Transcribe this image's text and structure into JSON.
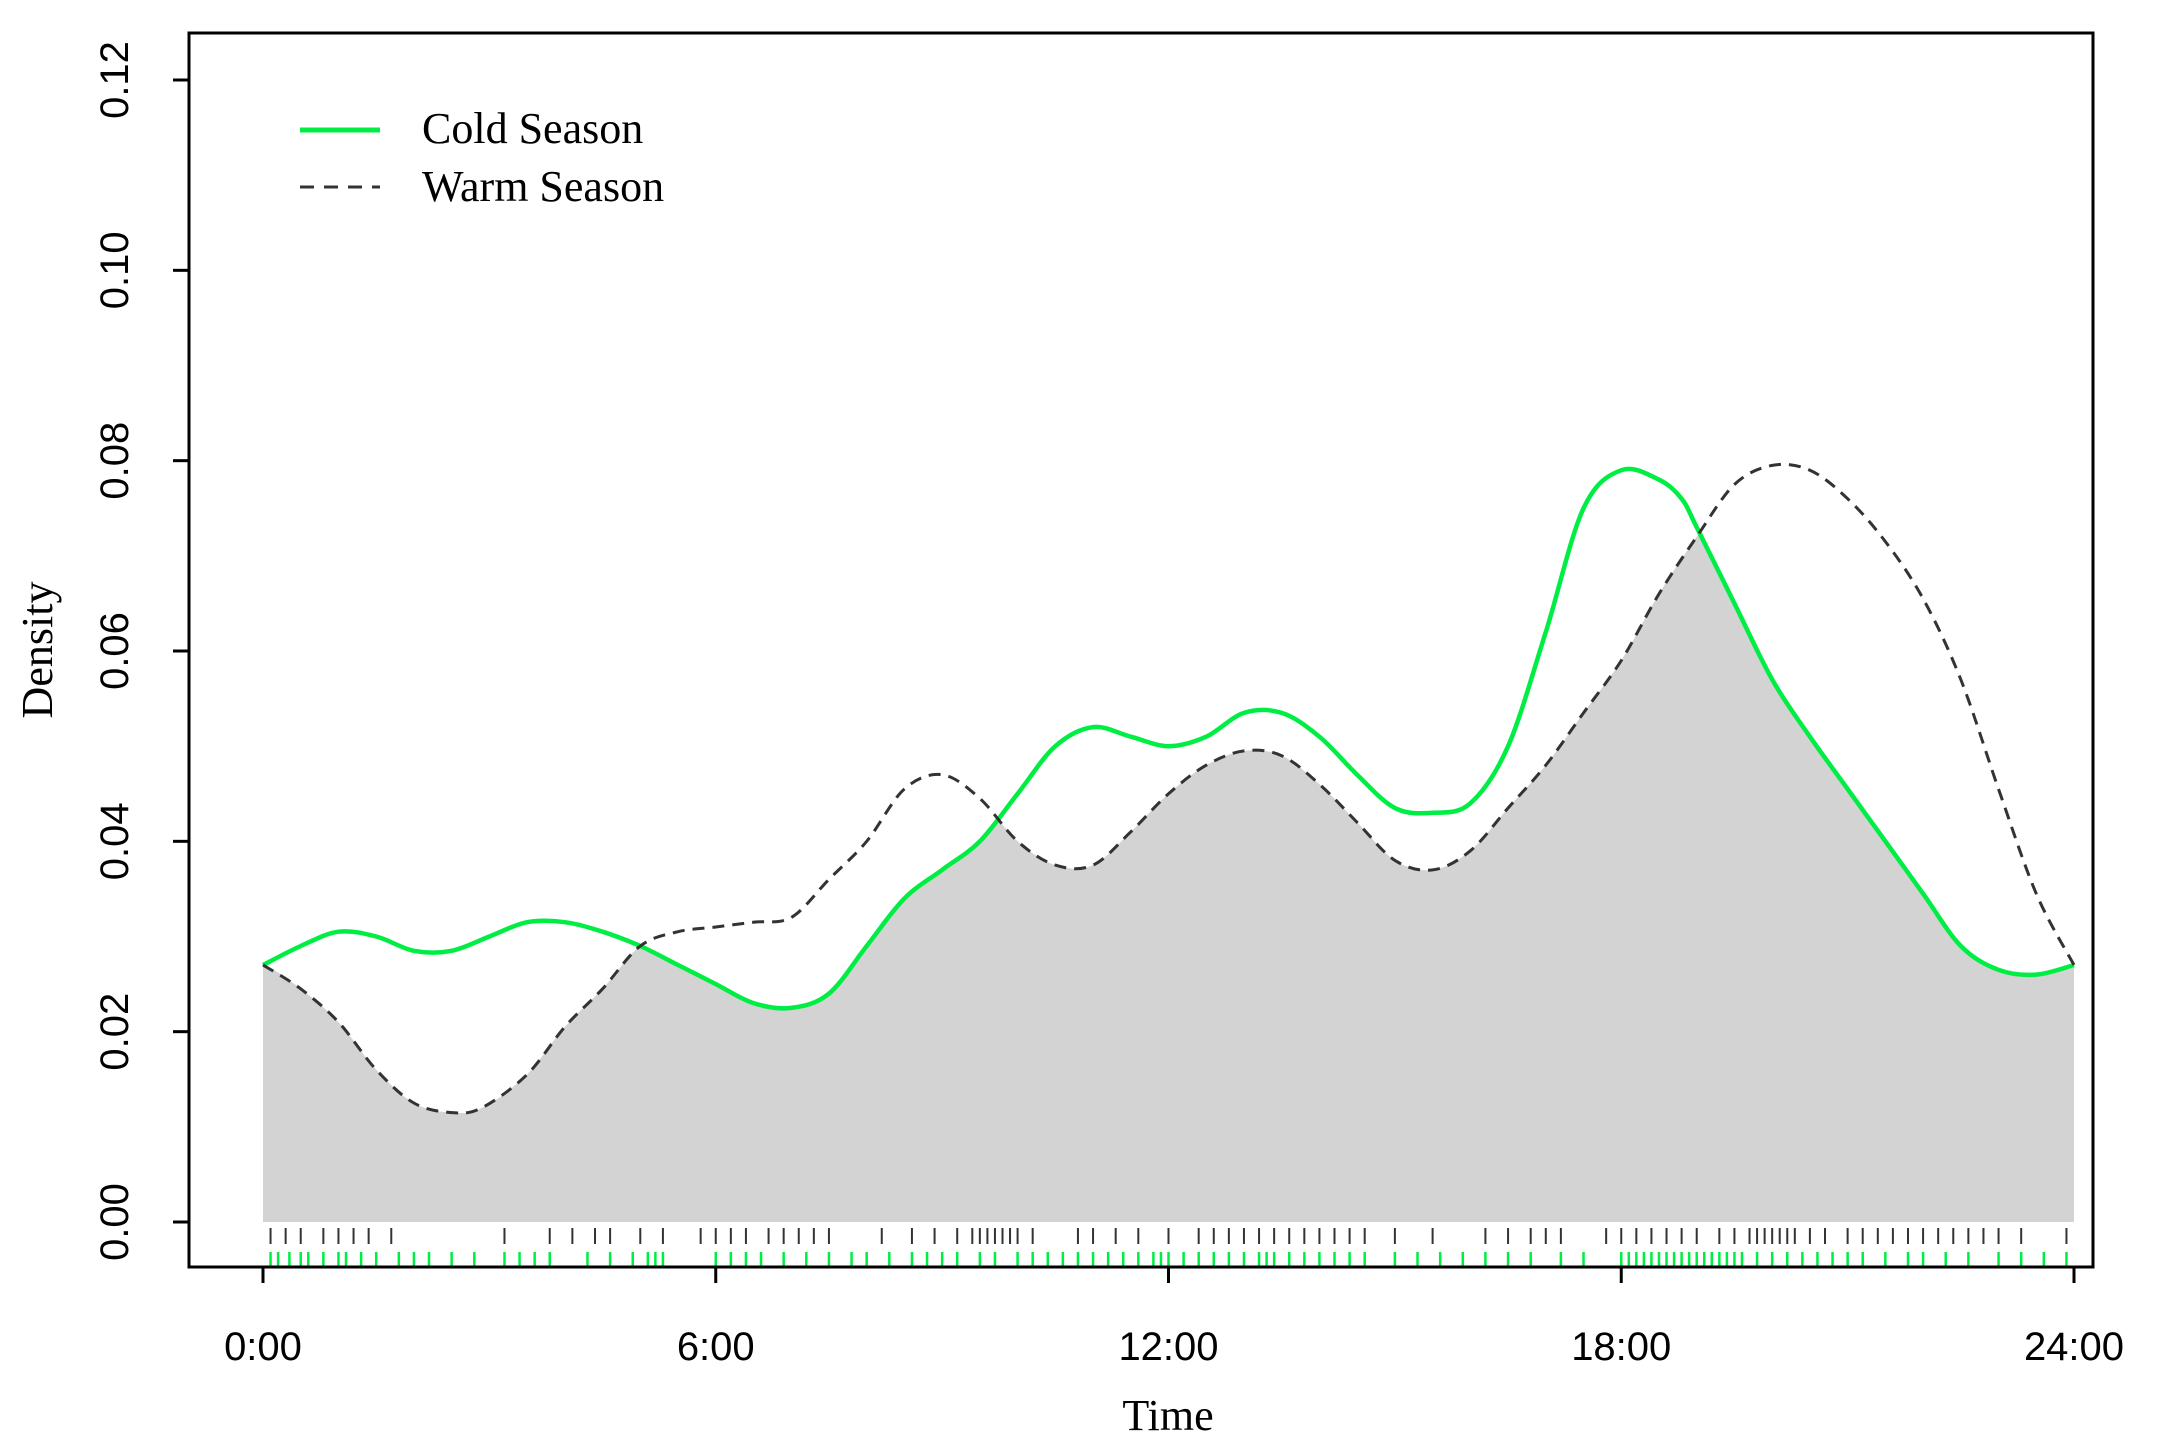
{
  "chart_data": {
    "type": "line",
    "title": "",
    "xlabel": "Time",
    "ylabel": "Density",
    "xlim": [
      0,
      24
    ],
    "ylim": [
      0,
      0.12
    ],
    "x_ticks": [
      0,
      6,
      12,
      18,
      24
    ],
    "x_tick_labels": [
      "0:00",
      "6:00",
      "12:00",
      "18:00",
      "24:00"
    ],
    "y_ticks": [
      0,
      0.02,
      0.04,
      0.06,
      0.08,
      0.1,
      0.12
    ],
    "y_tick_labels": [
      "0.00",
      "0.02",
      "0.04",
      "0.06",
      "0.08",
      "0.10",
      "0.12"
    ],
    "grid": false,
    "legend_position": "top-left",
    "overlap_fill_color": "#d3d3d3",
    "series": [
      {
        "name": "Cold Season",
        "style": "solid",
        "color": "#00ee44",
        "x": [
          0,
          0.5,
          1.0,
          1.5,
          2.0,
          2.5,
          3.0,
          3.5,
          4.0,
          4.5,
          5.0,
          5.5,
          6.0,
          6.5,
          7.0,
          7.5,
          8.0,
          8.5,
          9.0,
          9.5,
          10.0,
          10.5,
          11.0,
          11.5,
          12.0,
          12.5,
          13.0,
          13.5,
          14.0,
          14.5,
          15.0,
          15.5,
          16.0,
          16.5,
          17.0,
          17.5,
          18.0,
          18.5,
          18.8,
          19.0,
          19.5,
          20.0,
          20.5,
          21.0,
          21.5,
          22.0,
          22.5,
          23.0,
          23.5,
          24.0
        ],
        "y": [
          0.027,
          0.029,
          0.0305,
          0.03,
          0.0285,
          0.0285,
          0.03,
          0.0315,
          0.0315,
          0.0305,
          0.029,
          0.027,
          0.025,
          0.023,
          0.0225,
          0.024,
          0.029,
          0.034,
          0.037,
          0.04,
          0.045,
          0.05,
          0.052,
          0.051,
          0.05,
          0.051,
          0.0535,
          0.0535,
          0.051,
          0.047,
          0.0435,
          0.043,
          0.044,
          0.05,
          0.062,
          0.075,
          0.079,
          0.078,
          0.076,
          0.073,
          0.065,
          0.057,
          0.051,
          0.0455,
          0.04,
          0.0345,
          0.029,
          0.0265,
          0.026,
          0.027
        ]
      },
      {
        "name": "Warm Season",
        "style": "dashed",
        "color": "#333333",
        "x": [
          0,
          0.5,
          1.0,
          1.5,
          2.0,
          2.5,
          2.9,
          3.5,
          4.0,
          4.5,
          5.0,
          5.5,
          6.0,
          6.5,
          7.0,
          7.5,
          8.0,
          8.5,
          9.0,
          9.5,
          10.0,
          10.5,
          11.0,
          11.5,
          12.0,
          12.5,
          13.0,
          13.5,
          14.0,
          14.5,
          15.0,
          15.5,
          16.0,
          16.5,
          17.0,
          17.5,
          18.0,
          18.5,
          19.0,
          19.5,
          20.0,
          20.5,
          21.0,
          21.5,
          22.0,
          22.5,
          23.0,
          23.5,
          24.0
        ],
        "y": [
          0.027,
          0.0245,
          0.021,
          0.016,
          0.0125,
          0.0115,
          0.012,
          0.0155,
          0.0205,
          0.0245,
          0.029,
          0.0305,
          0.031,
          0.0315,
          0.032,
          0.036,
          0.04,
          0.0455,
          0.047,
          0.0445,
          0.04,
          0.0375,
          0.0375,
          0.041,
          0.045,
          0.048,
          0.0495,
          0.049,
          0.046,
          0.042,
          0.038,
          0.037,
          0.039,
          0.0435,
          0.048,
          0.0535,
          0.059,
          0.066,
          0.072,
          0.0775,
          0.0795,
          0.079,
          0.076,
          0.0715,
          0.0655,
          0.057,
          0.0455,
          0.0345,
          0.027
        ]
      }
    ],
    "rug": {
      "warm": [
        0.1,
        0.3,
        0.5,
        0.8,
        1.0,
        1.2,
        1.4,
        1.7,
        3.2,
        3.8,
        4.1,
        4.4,
        4.6,
        5.0,
        5.3,
        5.8,
        6.0,
        6.2,
        6.4,
        6.7,
        6.9,
        7.1,
        7.3,
        7.5,
        8.2,
        8.6,
        8.9,
        9.2,
        9.4,
        9.5,
        9.6,
        9.7,
        9.8,
        9.9,
        10.0,
        10.2,
        10.8,
        11.0,
        11.3,
        11.6,
        12.0,
        12.4,
        12.6,
        12.8,
        13.0,
        13.2,
        13.4,
        13.6,
        13.8,
        14.0,
        14.2,
        14.4,
        14.6,
        15.0,
        15.5,
        16.2,
        16.5,
        16.8,
        17.0,
        17.2,
        17.8,
        18.0,
        18.2,
        18.4,
        18.6,
        18.8,
        19.0,
        19.3,
        19.5,
        19.7,
        19.8,
        19.9,
        20.0,
        20.1,
        20.2,
        20.3,
        20.5,
        20.7,
        21.0,
        21.2,
        21.4,
        21.6,
        21.8,
        22.0,
        22.2,
        22.4,
        22.6,
        22.8,
        23.0,
        23.3,
        23.9
      ],
      "cold": [
        0.1,
        0.2,
        0.35,
        0.5,
        0.6,
        0.8,
        1.0,
        1.1,
        1.3,
        1.5,
        1.8,
        2.0,
        2.2,
        2.5,
        2.8,
        3.2,
        3.4,
        3.6,
        3.8,
        4.3,
        4.6,
        4.9,
        5.1,
        5.2,
        5.3,
        6.0,
        6.2,
        6.4,
        6.6,
        6.9,
        7.2,
        7.5,
        7.8,
        8.0,
        8.3,
        8.6,
        8.8,
        9.0,
        9.2,
        9.5,
        9.7,
        10.0,
        10.2,
        10.4,
        10.6,
        10.8,
        11.0,
        11.2,
        11.4,
        11.6,
        11.8,
        11.9,
        12.0,
        12.2,
        12.4,
        12.6,
        12.8,
        13.0,
        13.2,
        13.3,
        13.4,
        13.6,
        13.8,
        14.0,
        14.2,
        14.4,
        14.6,
        15.0,
        15.3,
        15.6,
        15.9,
        16.2,
        16.5,
        16.8,
        17.2,
        17.5,
        18.0,
        18.1,
        18.2,
        18.3,
        18.4,
        18.5,
        18.6,
        18.7,
        18.8,
        18.9,
        19.0,
        19.1,
        19.2,
        19.3,
        19.4,
        19.5,
        19.6,
        19.8,
        20.0,
        20.2,
        20.4,
        20.6,
        20.8,
        21.0,
        21.2,
        21.5,
        21.8,
        22.0,
        22.3,
        22.6,
        23.0,
        23.3,
        23.6,
        23.9
      ]
    }
  }
}
